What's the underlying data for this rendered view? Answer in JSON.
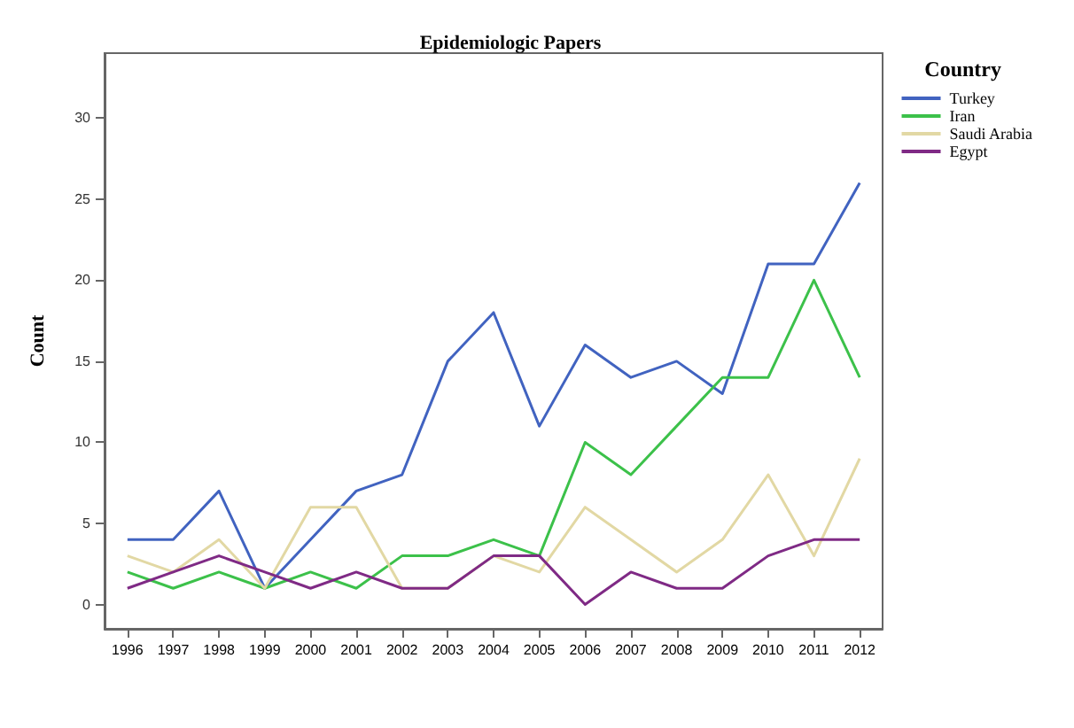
{
  "chart_data": {
    "type": "line",
    "title": "Epidemiologic Papers",
    "ylabel": "Count",
    "legend_title": "Country",
    "legend": "top right",
    "grid": false,
    "marker": "none",
    "line_style": "solid",
    "categories": [
      "1996",
      "1997",
      "1998",
      "1999",
      "2000",
      "2001",
      "2002",
      "2003",
      "2004",
      "2005",
      "2006",
      "2007",
      "2008",
      "2009",
      "2010",
      "2011",
      "2012"
    ],
    "ylim": [
      -1.5,
      34
    ],
    "yticks": [
      0,
      5,
      10,
      15,
      20,
      25,
      30
    ],
    "series": [
      {
        "name": "Turkey",
        "color": "#4163c0",
        "values": [
          4,
          4,
          7,
          1,
          4,
          7,
          8,
          15,
          18,
          11,
          16,
          14,
          15,
          13,
          21,
          21,
          26
        ]
      },
      {
        "name": "Iran",
        "color": "#3cc14a",
        "values": [
          2,
          1,
          2,
          1,
          2,
          1,
          3,
          3,
          4,
          3,
          10,
          8,
          11,
          14,
          14,
          20,
          14
        ]
      },
      {
        "name": "Saudi Arabia",
        "color": "#e2d8a4",
        "values": [
          3,
          2,
          4,
          1,
          6,
          6,
          1,
          1,
          3,
          2,
          6,
          4,
          2,
          4,
          8,
          3,
          9
        ]
      },
      {
        "name": "Egypt",
        "color": "#7f2a85",
        "values": [
          1,
          2,
          3,
          2,
          1,
          2,
          1,
          1,
          3,
          3,
          0,
          2,
          1,
          1,
          3,
          4,
          4
        ]
      }
    ]
  }
}
